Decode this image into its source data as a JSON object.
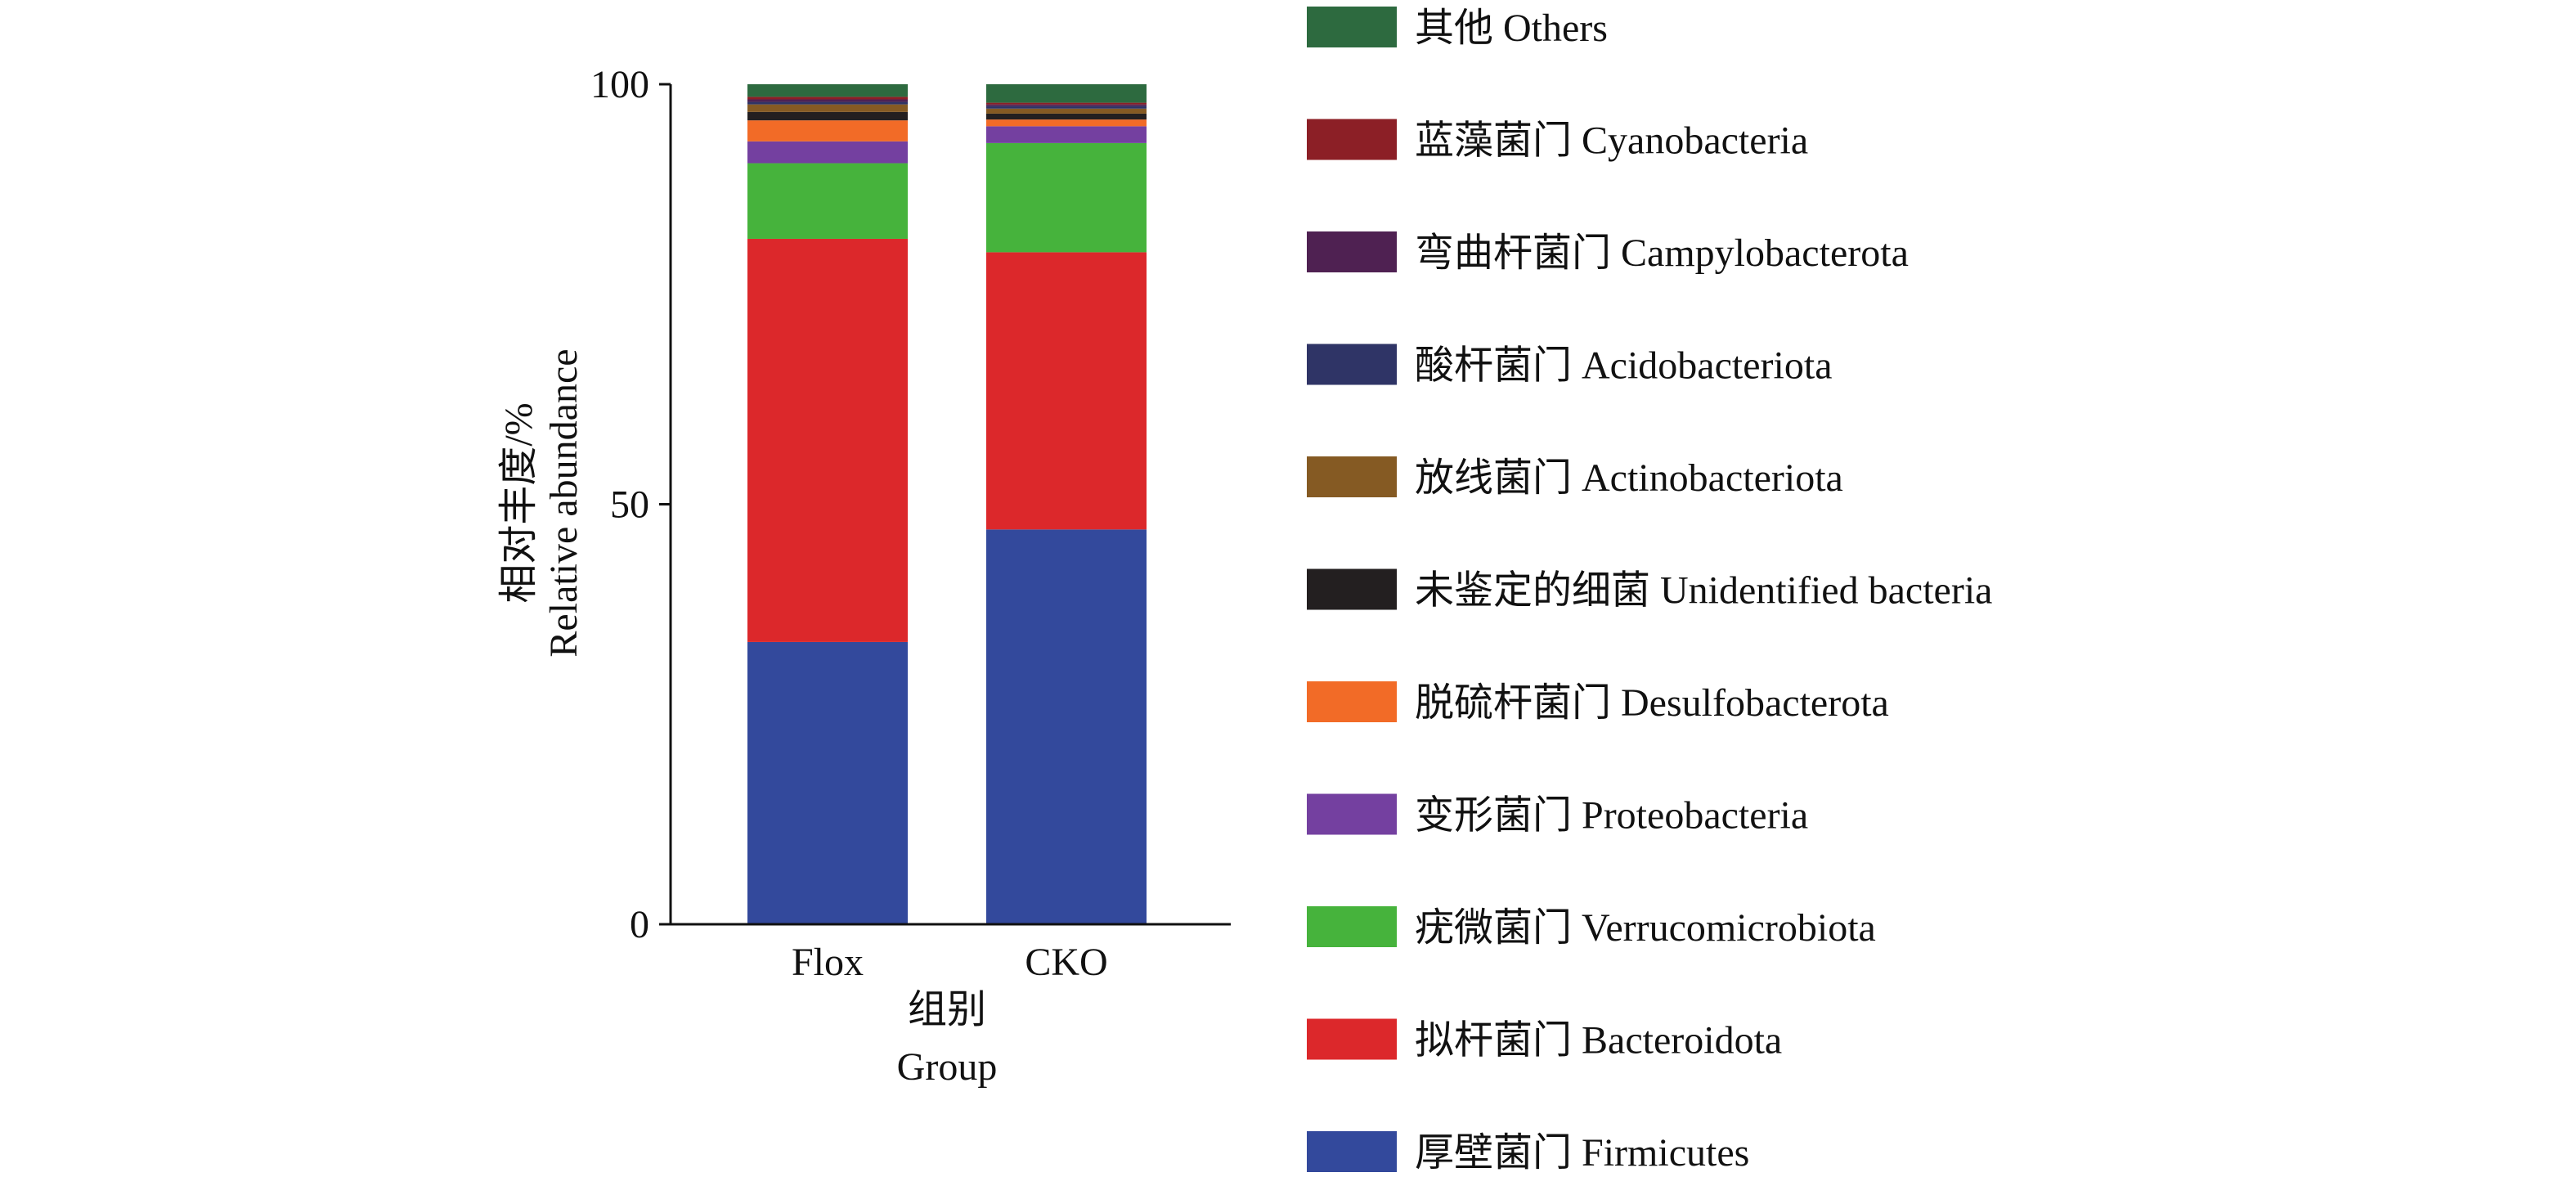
{
  "chart_data": {
    "type": "bar",
    "stacked": true,
    "categories": [
      "Flox",
      "CKO"
    ],
    "series": [
      {
        "name": "厚壁菌门 Firmicutes",
        "color": "#33499c",
        "values": [
          33.6,
          47.0
        ]
      },
      {
        "name": "拟杆菌门 Bacteroidota",
        "color": "#dc282b",
        "values": [
          48.0,
          33.0
        ]
      },
      {
        "name": "疣微菌门 Verrucomicrobiota",
        "color": "#46b33c",
        "values": [
          9.0,
          13.0
        ]
      },
      {
        "name": "变形菌门 Proteobacteria",
        "color": "#7440a0",
        "values": [
          2.6,
          2.0
        ]
      },
      {
        "name": "脱硫杆菌门 Desulfobacterota",
        "color": "#f26b27",
        "values": [
          2.5,
          0.8
        ]
      },
      {
        "name": "未鉴定的细菌 Unidentified bacteria",
        "color": "#231f20",
        "values": [
          1.0,
          0.7
        ]
      },
      {
        "name": "放线菌门 Actinobacteriota",
        "color": "#855a23",
        "values": [
          0.9,
          0.6
        ]
      },
      {
        "name": "酸杆菌门 Acidobacteriota",
        "color": "#2f3466",
        "values": [
          0.3,
          0.3
        ]
      },
      {
        "name": "弯曲杆菌门 Campylobacterota",
        "color": "#4f2152",
        "values": [
          0.3,
          0.2
        ]
      },
      {
        "name": "蓝藻菌门 Cyanobacteria",
        "color": "#8c1f26",
        "values": [
          0.3,
          0.2
        ]
      },
      {
        "name": "其他 Others",
        "color": "#2d6a3f",
        "values": [
          1.5,
          2.2
        ]
      }
    ],
    "legend_order": [
      "其他 Others",
      "蓝藻菌门 Cyanobacteria",
      "弯曲杆菌门 Campylobacterota",
      "酸杆菌门 Acidobacteriota",
      "放线菌门 Actinobacteriota",
      "未鉴定的细菌 Unidentified bacteria",
      "脱硫杆菌门 Desulfobacterota",
      "变形菌门 Proteobacteria",
      "疣微菌门 Verrucomicrobiota",
      "拟杆菌门 Bacteroidota",
      "厚壁菌门 Firmicutes"
    ],
    "xlabel": [
      "组别",
      "Group"
    ],
    "ylabel": [
      "相对丰度/%",
      "Relative abundance"
    ],
    "ylim": [
      0,
      100
    ],
    "yticks": [
      0,
      50,
      100
    ],
    "grid": false,
    "legend_position": "right"
  }
}
